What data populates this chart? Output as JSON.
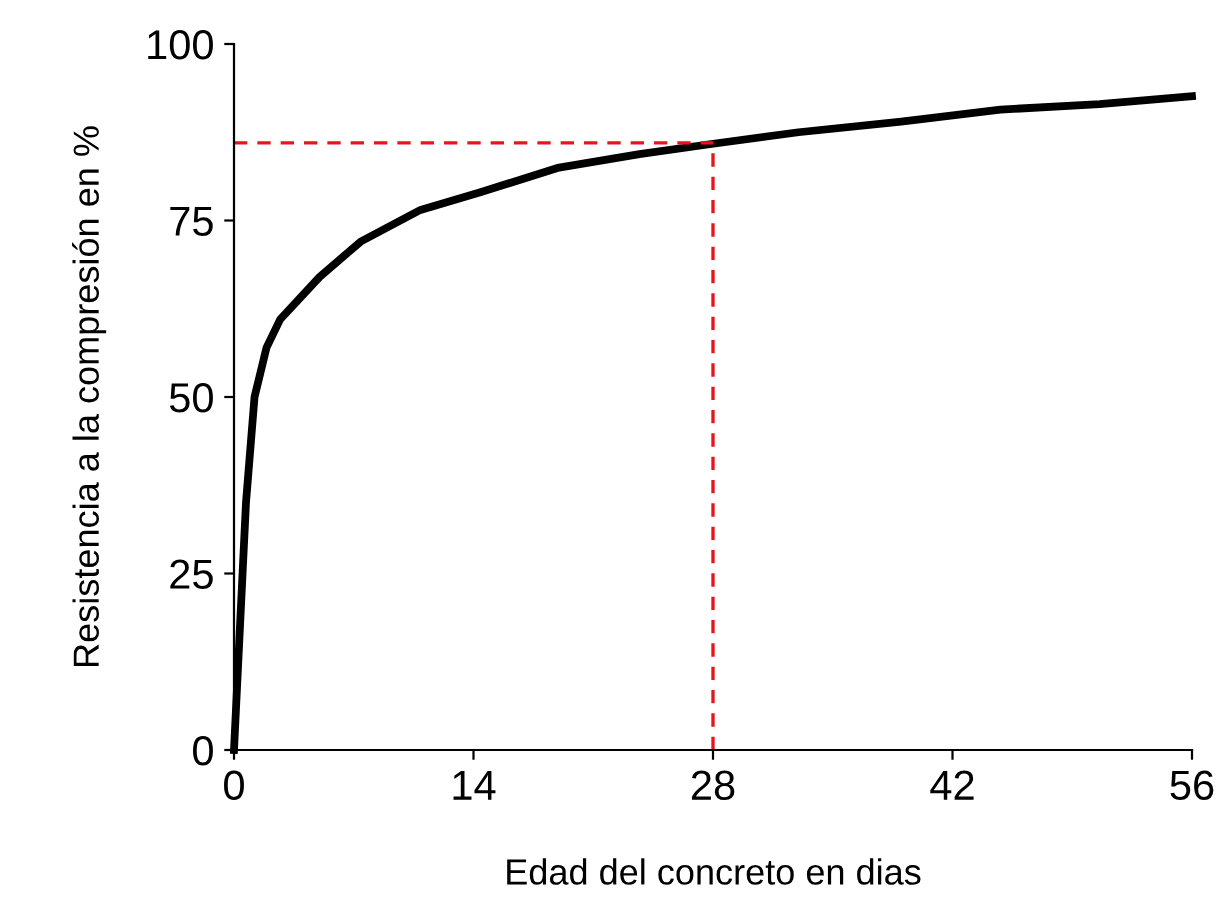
{
  "chart_data": {
    "type": "line",
    "xlabel": "Edad del concreto en dias",
    "ylabel": "Resistencia a la compresión en %",
    "xlim": [
      0,
      56
    ],
    "ylim": [
      0,
      100
    ],
    "xticks": [
      0,
      14,
      28,
      42,
      56
    ],
    "yticks": [
      0,
      25,
      50,
      75,
      100
    ],
    "grid": false,
    "legend": false,
    "series": [
      {
        "color": "#000000",
        "line_style": "solid",
        "x": [
          0,
          0.7,
          1.2,
          1.9,
          2.7,
          5,
          7.4,
          10.9,
          14.4,
          19,
          23.7,
          27.8,
          33,
          39,
          44.8,
          50.6,
          56
        ],
        "values": [
          0,
          35,
          50,
          57,
          61,
          67,
          72,
          76.5,
          79,
          82.5,
          84.4,
          85.8,
          87.5,
          89,
          90.7,
          91.5,
          92.6
        ]
      },
      {
        "color": "#e8141c",
        "line_style": "dashed",
        "x": [
          0,
          28
        ],
        "values": [
          86,
          86
        ]
      },
      {
        "color": "#e8141c",
        "line_style": "dashed",
        "x": [
          28,
          28
        ],
        "values": [
          0,
          86
        ]
      }
    ]
  }
}
